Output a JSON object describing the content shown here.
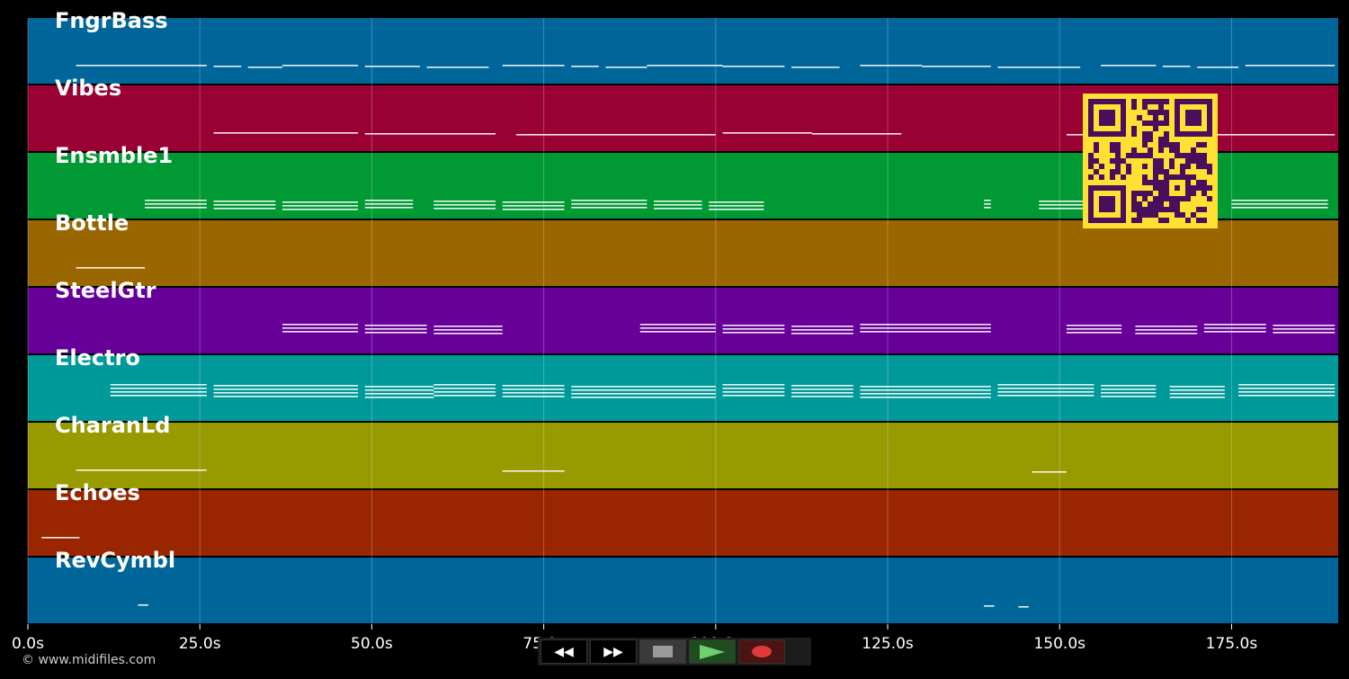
{
  "tracks": [
    {
      "name": "FngrBass",
      "color": "#006699"
    },
    {
      "name": "Vibes",
      "color": "#990033"
    },
    {
      "name": "Ensmble1",
      "color": "#009933"
    },
    {
      "name": "Bottle",
      "color": "#996600"
    },
    {
      "name": "SteelGtr",
      "color": "#660099"
    },
    {
      "name": "Electro",
      "color": "#009999"
    },
    {
      "name": "CharanLd",
      "color": "#999900"
    },
    {
      "name": "Echoes",
      "color": "#992600"
    },
    {
      "name": "RevCymbl",
      "color": "#006699"
    }
  ],
  "timeline": {
    "ticks": [
      "0.0s",
      "25.0s",
      "50.0s",
      "75.0s",
      "100.0s",
      "125.0s",
      "150.0s",
      "175.0s"
    ],
    "tick_values": [
      0,
      25,
      50,
      75,
      100,
      125,
      150,
      175
    ],
    "max_seconds": 190.5
  },
  "transport": {
    "rewind": {
      "icon": "rewind-icon",
      "label": "◀◀"
    },
    "forward": {
      "icon": "fast-forward-icon",
      "label": "▶▶"
    },
    "stop": {
      "icon": "stop-icon"
    },
    "play": {
      "icon": "play-icon"
    },
    "record": {
      "icon": "record-icon"
    }
  },
  "copyright": "© www.midifiles.com",
  "qr_colors": {
    "dark": "#4a0f5c",
    "light": "#ffe033"
  },
  "note_segments": [
    [
      [
        7,
        26
      ],
      [
        27,
        31
      ],
      [
        32,
        37
      ],
      [
        37,
        48
      ],
      [
        49,
        57
      ],
      [
        58,
        67
      ],
      [
        69,
        78
      ],
      [
        79,
        83
      ],
      [
        84,
        90
      ],
      [
        90,
        101
      ],
      [
        101,
        110
      ],
      [
        111,
        118
      ],
      [
        121,
        130
      ],
      [
        130,
        140
      ],
      [
        141,
        153
      ],
      [
        156,
        164
      ],
      [
        165,
        169
      ],
      [
        170,
        176
      ],
      [
        177,
        190
      ]
    ],
    [
      [
        27,
        48
      ],
      [
        49,
        68
      ],
      [
        71,
        100
      ],
      [
        101,
        114
      ],
      [
        114,
        127
      ],
      [
        151,
        190
      ]
    ],
    [
      [
        17,
        26
      ],
      [
        27,
        36
      ],
      [
        37,
        48
      ],
      [
        49,
        56
      ],
      [
        59,
        68
      ],
      [
        69,
        78
      ],
      [
        79,
        90
      ],
      [
        91,
        98
      ],
      [
        99,
        107
      ],
      [
        139,
        140
      ],
      [
        147,
        155
      ],
      [
        156,
        168
      ],
      [
        175,
        189
      ]
    ],
    [
      [
        7,
        17
      ]
    ],
    [
      [
        37,
        48
      ],
      [
        49,
        58
      ],
      [
        59,
        69
      ],
      [
        89,
        100
      ],
      [
        101,
        110
      ],
      [
        111,
        120
      ],
      [
        121,
        140
      ],
      [
        151,
        159
      ],
      [
        161,
        170
      ],
      [
        171,
        180
      ],
      [
        181,
        190
      ]
    ],
    [
      [
        12,
        26
      ],
      [
        27,
        48
      ],
      [
        49,
        59
      ],
      [
        59,
        68
      ],
      [
        69,
        78
      ],
      [
        79,
        100
      ],
      [
        101,
        110
      ],
      [
        111,
        120
      ],
      [
        121,
        140
      ],
      [
        141,
        155
      ],
      [
        156,
        164
      ],
      [
        166,
        174
      ],
      [
        176,
        190
      ]
    ],
    [
      [
        7,
        26
      ],
      [
        69,
        78
      ],
      [
        146,
        151
      ]
    ],
    [
      [
        2,
        7.5
      ]
    ],
    [
      [
        16,
        17.5
      ],
      [
        139,
        140.5
      ],
      [
        144,
        145.5
      ]
    ]
  ]
}
